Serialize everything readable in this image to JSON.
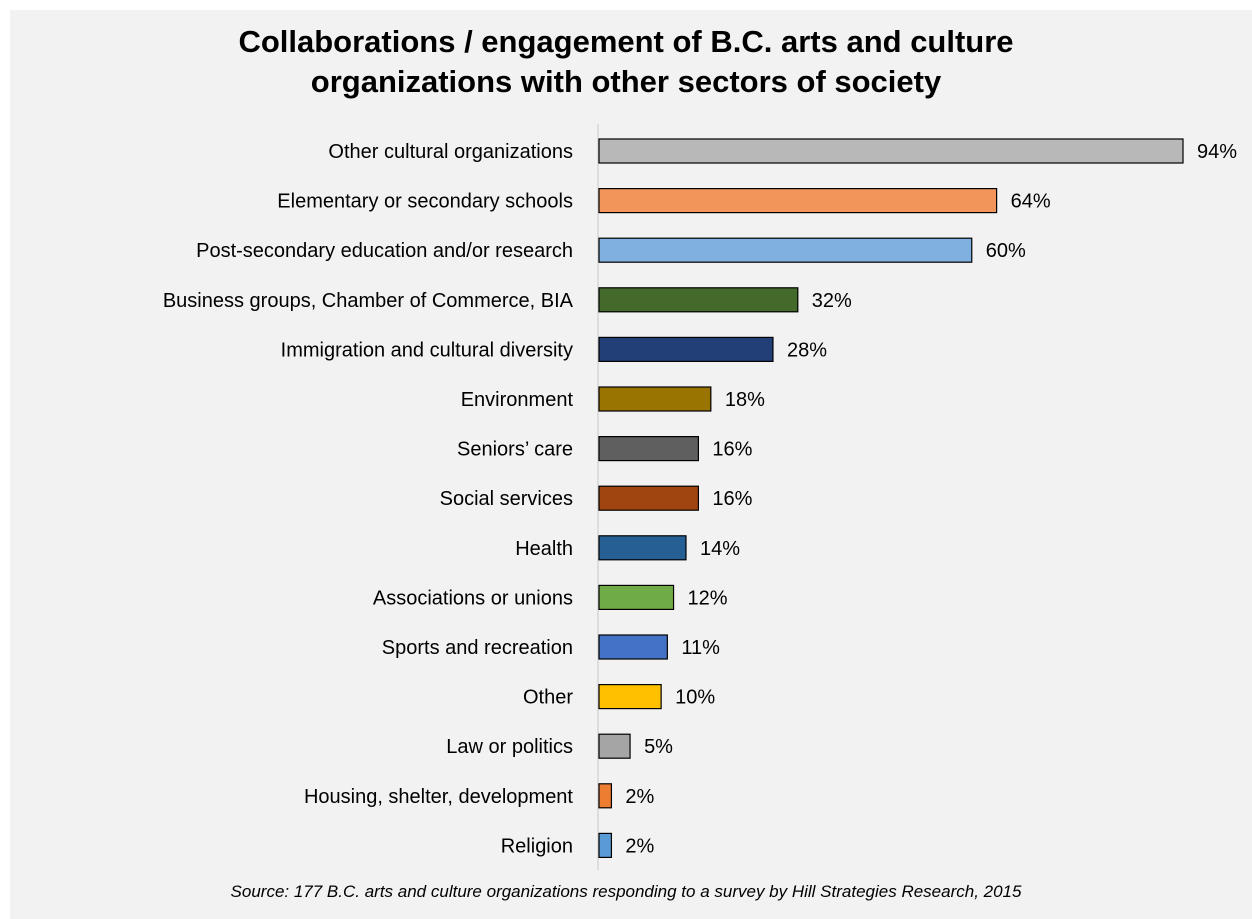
{
  "chart_data": {
    "type": "bar",
    "orientation": "horizontal",
    "title_lines": [
      "Collaborations / engagement of B.C. arts and culture",
      "organizations with other sectors of society"
    ],
    "categories": [
      "Other cultural organizations",
      "Elementary or secondary schools",
      "Post-secondary education and/or research",
      "Business groups, Chamber of Commerce, BIA",
      "Immigration and cultural diversity",
      "Environment",
      "Seniors’ care",
      "Social services",
      "Health",
      "Associations or unions",
      "Sports and recreation",
      "Other",
      "Law or politics",
      "Housing, shelter, development",
      "Religion"
    ],
    "values": [
      94,
      64,
      60,
      32,
      28,
      18,
      16,
      16,
      14,
      12,
      11,
      10,
      5,
      2,
      2
    ],
    "value_labels": [
      "94%",
      "64%",
      "60%",
      "32%",
      "28%",
      "18%",
      "16%",
      "16%",
      "14%",
      "12%",
      "11%",
      "10%",
      "5%",
      "2%",
      "2%"
    ],
    "bar_colors": [
      "#b8b8b8",
      "#f2955a",
      "#7fb0df",
      "#436a2a",
      "#233f78",
      "#9a7400",
      "#5f5f5f",
      "#a14510",
      "#265f94",
      "#6fab47",
      "#4472c4",
      "#ffc000",
      "#a5a5a5",
      "#ed7d31",
      "#5b9bd5"
    ],
    "xlim": [
      0,
      94
    ],
    "grid": false,
    "legend": "none",
    "source": "Source: 177 B.C. arts and culture organizations responding to a survey by Hill Strategies Research, 2015"
  }
}
